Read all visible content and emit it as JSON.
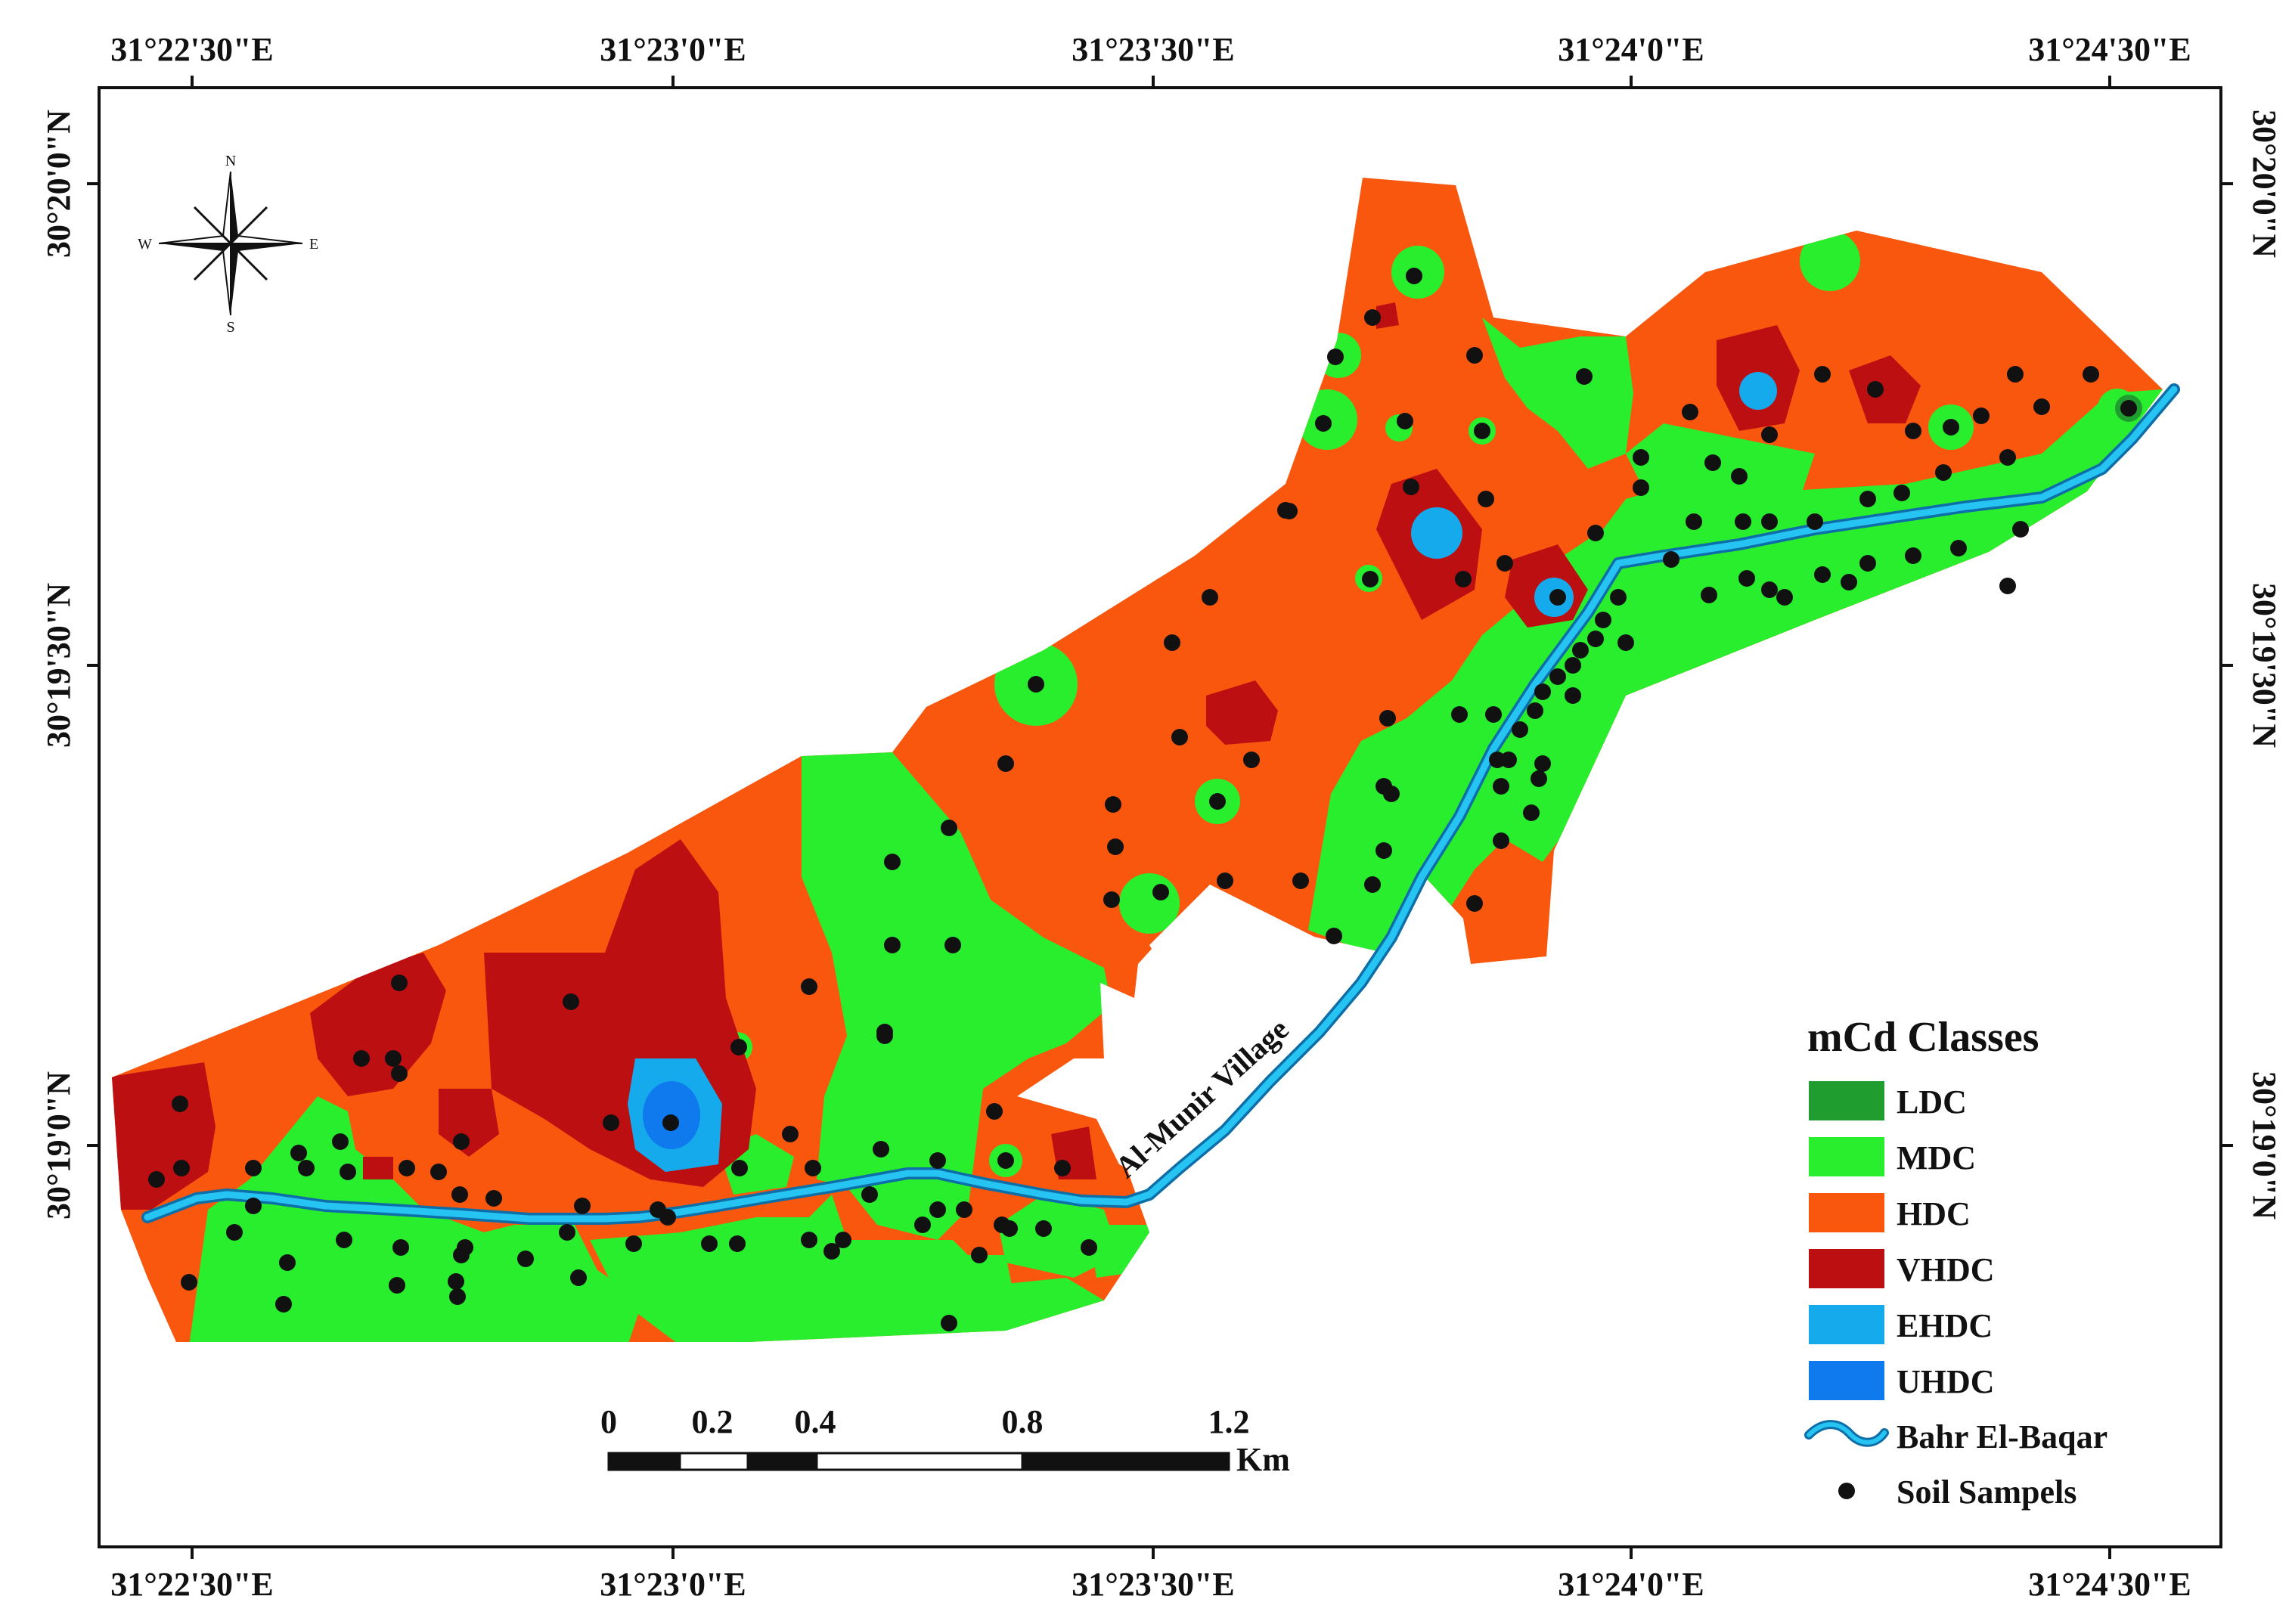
{
  "map": {
    "top_lon_labels": [
      "31°22'30\"E",
      "31°23'0\"E",
      "31°23'30\"E",
      "31°24'0\"E",
      "31°24'30\"E"
    ],
    "bottom_lon_labels": [
      "31°22'30\"E",
      "31°23'0\"E",
      "31°23'30\"E",
      "31°24'0\"E",
      "31°24'30\"E"
    ],
    "left_lat_labels": [
      "30°20'0\"N",
      "30°19'30\"N",
      "30°19'0\"N"
    ],
    "right_lat_labels": [
      "30°20'0\"N",
      "30°19'30\"N",
      "30°19'0\"N"
    ],
    "village_label": "Al-Munir Village",
    "compass": {
      "n": "N",
      "s": "S",
      "e": "E",
      "w": "W"
    }
  },
  "legend": {
    "title": "mCd Classes",
    "classes": [
      {
        "label": "LDC",
        "color": "#1f9e2f"
      },
      {
        "label": "MDC",
        "color": "#28ee2e"
      },
      {
        "label": "HDC",
        "color": "#f9570e"
      },
      {
        "label": "VHDC",
        "color": "#bb0f12"
      },
      {
        "label": "EHDC",
        "color": "#15aaec"
      },
      {
        "label": "UHDC",
        "color": "#0f79ee"
      }
    ],
    "river_label": "Bahr El-Baqar",
    "river_color": "#1ab4e8",
    "samples_label": "Soil Sampels"
  },
  "scale_bar": {
    "ticks": [
      "0",
      "0.2",
      "0.4",
      "0.8",
      "1.2"
    ],
    "unit": "Km"
  }
}
